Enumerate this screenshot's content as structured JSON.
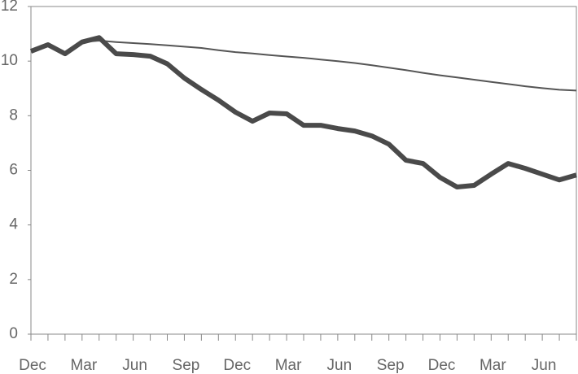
{
  "chart_data": {
    "type": "line",
    "categories": [
      "Dec",
      null,
      null,
      "Mar",
      null,
      null,
      "Jun",
      null,
      null,
      "Sep",
      null,
      null,
      "Dec",
      null,
      null,
      "Mar",
      null,
      null,
      "Jun",
      null,
      null,
      "Sep",
      null,
      null,
      "Dec",
      null,
      null,
      "Mar",
      null,
      null,
      "Jun",
      null,
      null
    ],
    "series": [
      {
        "color": "#555555",
        "width": 2,
        "values": [
          null,
          null,
          null,
          10.7,
          10.75,
          10.7,
          10.66,
          10.62,
          10.58,
          10.53,
          10.48,
          10.4,
          10.33,
          10.28,
          10.22,
          10.17,
          10.12,
          10.06,
          10.0,
          9.93,
          9.85,
          9.76,
          9.67,
          9.57,
          9.48,
          9.4,
          9.32,
          9.24,
          9.16,
          9.08,
          9.01,
          8.95,
          8.92
        ]
      },
      {
        "color": "#4a4a4a",
        "width": 6,
        "values": [
          10.36,
          10.6,
          10.27,
          10.7,
          10.86,
          10.27,
          10.24,
          10.18,
          9.9,
          9.38,
          8.96,
          8.57,
          8.13,
          7.8,
          8.1,
          8.07,
          7.65,
          7.65,
          7.53,
          7.44,
          7.26,
          6.96,
          6.37,
          6.25,
          5.74,
          5.39,
          5.45,
          5.86,
          6.25,
          6.07,
          5.86,
          5.65,
          5.83
        ]
      }
    ],
    "ylim": [
      0,
      12
    ],
    "yticks": [
      0,
      2,
      4,
      6,
      8,
      10,
      12
    ],
    "grid": false
  }
}
